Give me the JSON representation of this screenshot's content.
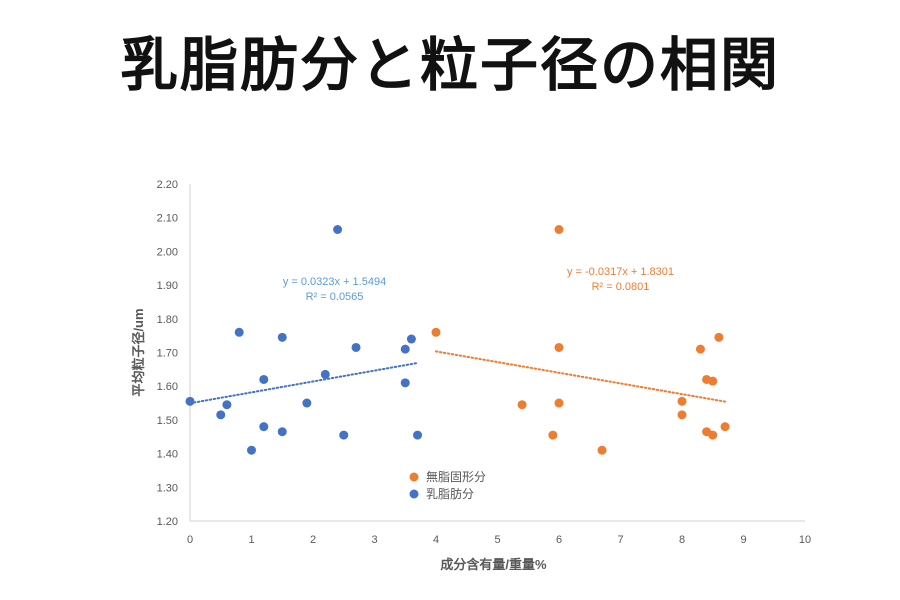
{
  "slide": {
    "title": "乳脂肪分と粒子径の相関"
  },
  "chart_data": {
    "type": "scatter",
    "xlabel": "成分含有量/重量%",
    "ylabel": "平均粒子径/um",
    "xlim": [
      0,
      10
    ],
    "ylim": [
      1.2,
      2.2
    ],
    "xticks": [
      "0",
      "1",
      "2",
      "3",
      "4",
      "5",
      "6",
      "7",
      "8",
      "9",
      "10"
    ],
    "yticks": [
      "1.20",
      "1.30",
      "1.40",
      "1.50",
      "1.60",
      "1.70",
      "1.80",
      "1.90",
      "2.00",
      "2.10",
      "2.20"
    ],
    "grid": false,
    "legend_position": "bottom-center",
    "series": [
      {
        "name": "無脂固形分",
        "color": "#ED7D31",
        "points": [
          {
            "x": 4.0,
            "y": 1.76
          },
          {
            "x": 5.4,
            "y": 1.545
          },
          {
            "x": 5.9,
            "y": 1.455
          },
          {
            "x": 6.0,
            "y": 2.065
          },
          {
            "x": 6.0,
            "y": 1.715
          },
          {
            "x": 6.0,
            "y": 1.55
          },
          {
            "x": 6.7,
            "y": 1.41
          },
          {
            "x": 8.0,
            "y": 1.555
          },
          {
            "x": 8.0,
            "y": 1.515
          },
          {
            "x": 8.3,
            "y": 1.71
          },
          {
            "x": 8.4,
            "y": 1.62
          },
          {
            "x": 8.4,
            "y": 1.465
          },
          {
            "x": 8.5,
            "y": 1.615
          },
          {
            "x": 8.5,
            "y": 1.455
          },
          {
            "x": 8.6,
            "y": 1.745
          },
          {
            "x": 8.7,
            "y": 1.48
          }
        ],
        "trendline": {
          "slope": -0.0317,
          "intercept": 1.8301,
          "x_range": [
            4.0,
            8.7
          ],
          "equation": "y = -0.0317x + 1.8301",
          "r2": "R² = 0.0801"
        }
      },
      {
        "name": "乳脂肪分",
        "color": "#4472C4",
        "label_color": "#5B9BD5",
        "points": [
          {
            "x": 0.0,
            "y": 1.555
          },
          {
            "x": 0.5,
            "y": 1.515
          },
          {
            "x": 0.6,
            "y": 1.545
          },
          {
            "x": 0.8,
            "y": 1.76
          },
          {
            "x": 1.0,
            "y": 1.41
          },
          {
            "x": 1.2,
            "y": 1.62
          },
          {
            "x": 1.2,
            "y": 1.48
          },
          {
            "x": 1.5,
            "y": 1.745
          },
          {
            "x": 1.5,
            "y": 1.465
          },
          {
            "x": 1.9,
            "y": 1.55
          },
          {
            "x": 2.2,
            "y": 1.635
          },
          {
            "x": 2.4,
            "y": 2.065
          },
          {
            "x": 2.5,
            "y": 1.455
          },
          {
            "x": 2.7,
            "y": 1.715
          },
          {
            "x": 3.5,
            "y": 1.71
          },
          {
            "x": 3.5,
            "y": 1.61
          },
          {
            "x": 3.6,
            "y": 1.74
          },
          {
            "x": 3.7,
            "y": 1.455
          }
        ],
        "trendline": {
          "slope": 0.0323,
          "intercept": 1.5494,
          "x_range": [
            0.0,
            3.7
          ],
          "equation": "y = 0.0323x + 1.5494",
          "r2": "R² = 0.0565"
        }
      }
    ]
  }
}
